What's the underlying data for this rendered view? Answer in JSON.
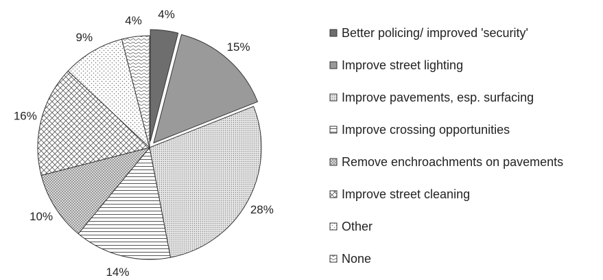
{
  "chart_data": {
    "type": "pie",
    "title": "",
    "legend_position": "right",
    "slices": [
      {
        "label": "Better policing/ improved 'security'",
        "value": 4,
        "value_label": "4%",
        "pattern": "solid-dark",
        "exploded": true
      },
      {
        "label": "Improve street lighting",
        "value": 15,
        "value_label": "15%",
        "pattern": "solid-mid",
        "exploded": true
      },
      {
        "label": "Improve pavements, esp. surfacing",
        "value": 28,
        "value_label": "28%",
        "pattern": "fine-dots"
      },
      {
        "label": "Improve crossing opportunities",
        "value": 14,
        "value_label": "14%",
        "pattern": "horizontal-lines"
      },
      {
        "label": "Remove enchroachments on pavements",
        "value": 10,
        "value_label": "10%",
        "pattern": "dense-dots"
      },
      {
        "label": "Improve street cleaning",
        "value": 16,
        "value_label": "16%",
        "pattern": "crosshatch"
      },
      {
        "label": "Other",
        "value": 9,
        "value_label": "9%",
        "pattern": "sparse-dots"
      },
      {
        "label": "None",
        "value": 4,
        "value_label": "4%",
        "pattern": "wavy"
      }
    ],
    "colors": {
      "solid-dark": "#6e6e6e",
      "solid-mid": "#9a9a9a",
      "stroke": "#333333"
    }
  }
}
